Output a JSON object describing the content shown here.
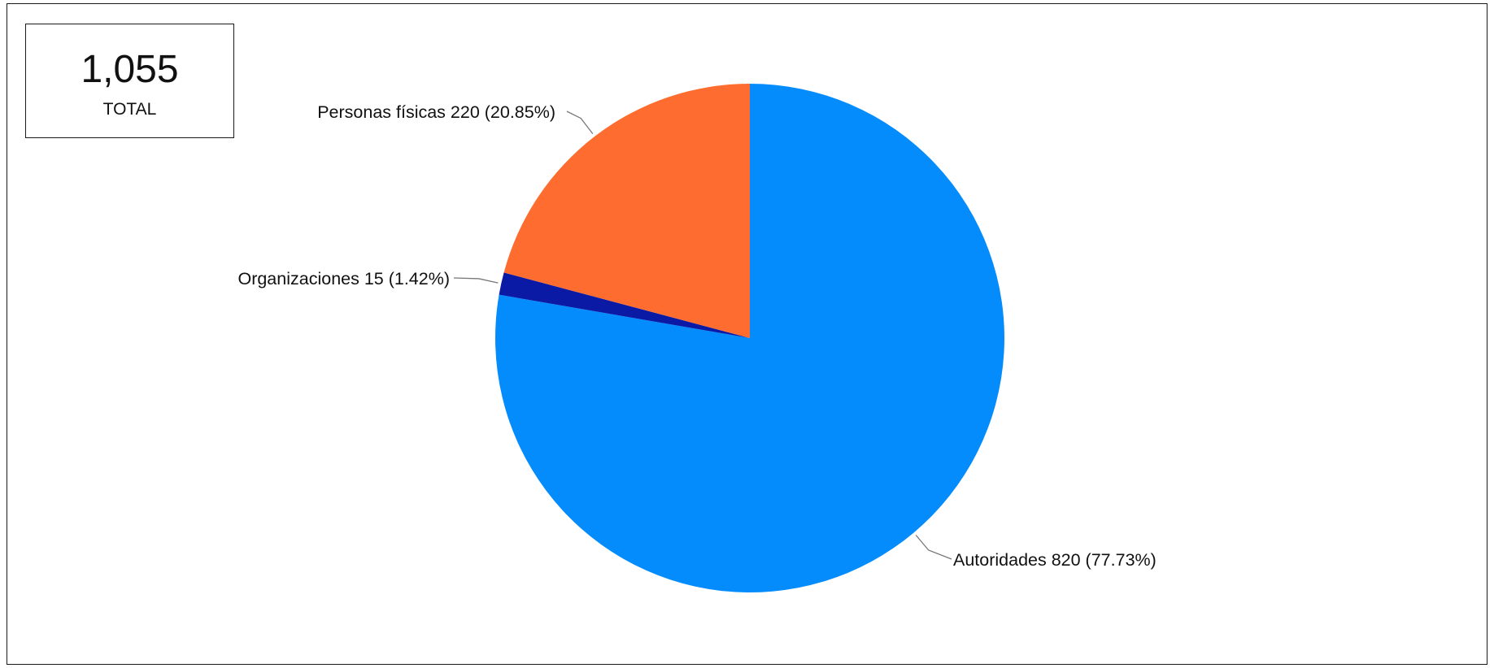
{
  "summary": {
    "total_value": "1,055",
    "total_label": "TOTAL"
  },
  "chart_data": {
    "type": "pie",
    "title": "",
    "slices": [
      {
        "label": "Autoridades 820 (77.73%)",
        "name": "Autoridades",
        "value": 820,
        "percent": 77.73,
        "color": "#048cfd"
      },
      {
        "label": "Organizaciones 15 (1.42%)",
        "name": "Organizaciones",
        "value": 15,
        "percent": 1.42,
        "color": "#0a1aa5"
      },
      {
        "label": "Personas físicas 220 (20.85%)",
        "name": "Personas físicas",
        "value": 220,
        "percent": 20.85,
        "color": "#ff6c30"
      }
    ],
    "start": "top",
    "direction": "clockwise",
    "leader_line_color": "#777777"
  }
}
